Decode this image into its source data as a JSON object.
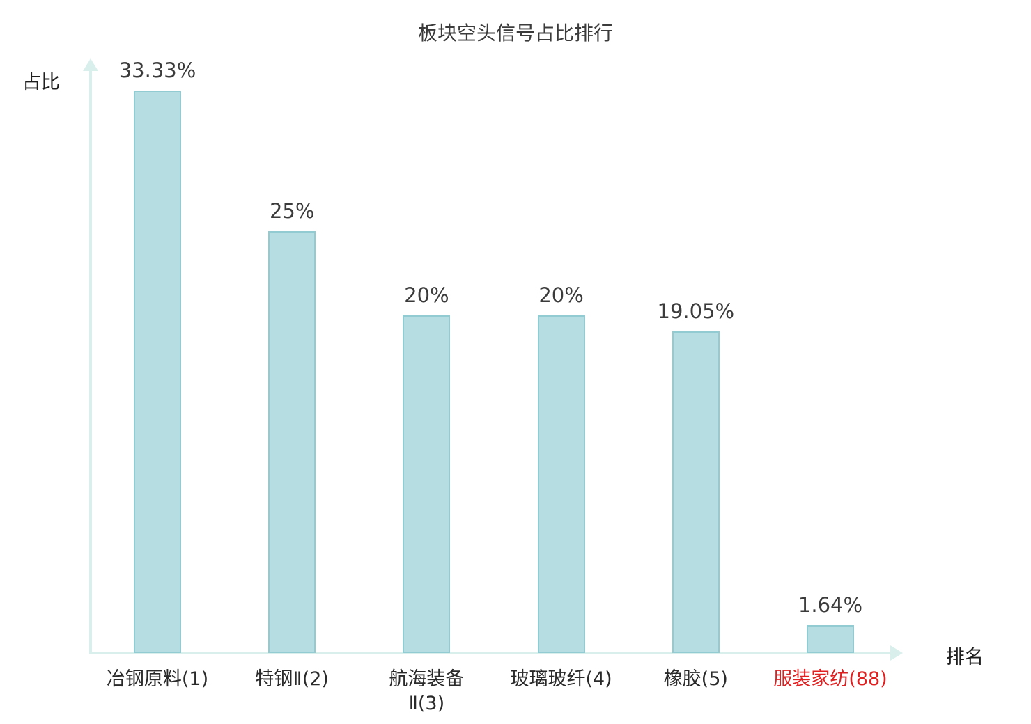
{
  "chart_data": {
    "type": "bar",
    "title": "板块空头信号占比排行",
    "xlabel": "排名",
    "ylabel": "占比",
    "ylim": [
      0,
      35
    ],
    "grid": false,
    "legend": "none",
    "categories": [
      "冶钢原料(1)",
      "特钢Ⅱ(2)",
      "航海装备\nⅡ(3)",
      "玻璃玻纤(4)",
      "橡胶(5)",
      "服装家纺(88)"
    ],
    "values": [
      33.33,
      25,
      20,
      20,
      19.05,
      1.64
    ],
    "value_labels": [
      "33.33%",
      "25%",
      "20%",
      "20%",
      "19.05%",
      "1.64%"
    ],
    "highlight_index": 5,
    "colors": {
      "bar_fill": "#b5dde2",
      "bar_border": "#93cbd3",
      "axis": "#d9efec",
      "text": "#3b3b3b",
      "highlight_text": "#e02020"
    }
  }
}
